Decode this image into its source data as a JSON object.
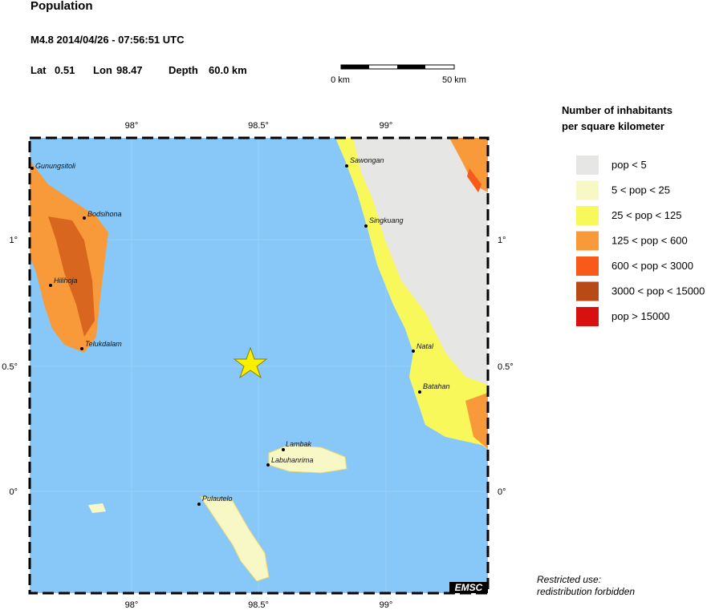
{
  "header": {
    "title": "Population",
    "event": "M4.8  2014/04/26 - 07:56:51 UTC",
    "lat_label": "Lat",
    "lat": "0.51",
    "lon_label": "Lon",
    "lon": "98.47",
    "depth_label": "Depth",
    "depth": "60.0 km"
  },
  "scale_bar": {
    "start": "0 km",
    "end": "50 km"
  },
  "map": {
    "x_ticks": [
      "98°",
      "98.5°",
      "99°"
    ],
    "y_ticks": [
      "1°",
      "0.5°",
      "0°"
    ],
    "places": [
      "Gunungsitoli",
      "Bodsihona",
      "Hilihoja",
      "Telukdalam",
      "Sawongan",
      "Singkuang",
      "Natal",
      "Batahan",
      "Lambak",
      "Labuhanrima",
      "Pulautelo"
    ],
    "watermark": "EMSC"
  },
  "legend": {
    "title_lines": [
      "Number of inhabitants",
      "per square kilometer"
    ],
    "items": [
      {
        "label": "pop < 5",
        "color": "#e6e6e4"
      },
      {
        "label": "5 < pop < 25",
        "color": "#f8f8c6"
      },
      {
        "label": "25 < pop < 125",
        "color": "#f8f85a"
      },
      {
        "label": "125 < pop < 600",
        "color": "#f89a3a"
      },
      {
        "label": "600 < pop < 3000",
        "color": "#f85a1a"
      },
      {
        "label": "3000 < pop < 15000",
        "color": "#b84a16"
      },
      {
        "label": "pop > 15000",
        "color": "#d81010"
      }
    ]
  },
  "footer": {
    "lines": [
      "Restricted use:",
      "redistribution forbidden"
    ]
  }
}
